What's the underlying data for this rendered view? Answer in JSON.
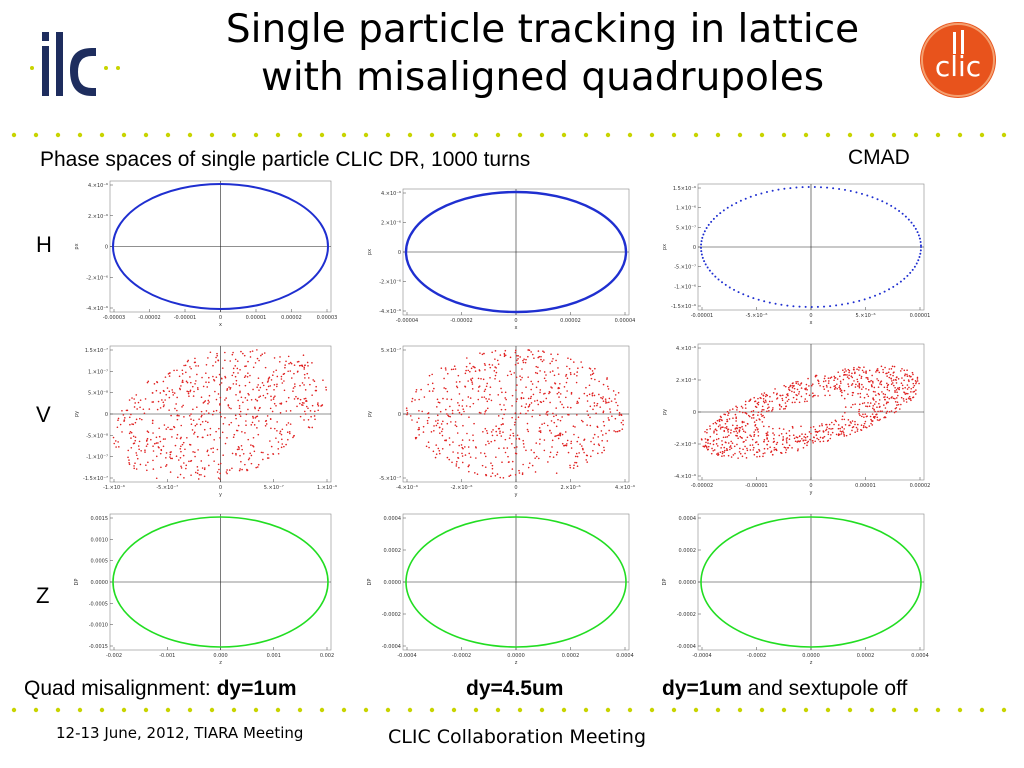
{
  "slide": {
    "title_line1": "Single particle tracking in lattice",
    "title_line2": "with misaligned quadrupoles",
    "subtitle": "Phase spaces of single particle CLIC DR, 1000 turns",
    "cmad_label": "CMAD",
    "row_labels": [
      "H",
      "V",
      "Z"
    ],
    "captions": {
      "col1_prefix": "Quad misalignment: ",
      "col1_bold": "dy=1um",
      "col2_bold": "dy=4.5um",
      "col3_bold": "dy=1um",
      "col3_suffix": " and sextupole off"
    },
    "footer_left": "12-13 June, 2012, TIARA Meeting",
    "footer_center": "CLIC Collaboration Meeting"
  },
  "logos": {
    "ilc_text": "ilc",
    "clic_text": "clic"
  },
  "colors": {
    "h_series": "#1f2fd0",
    "v_series": "#e02020",
    "z_series": "#22dd22",
    "dots": "#c8d400",
    "clic_orange": "#e8531c",
    "ilc_navy": "#1e2d5e"
  },
  "chart_data": [
    {
      "type": "scatter",
      "panel": "H, dy=1um",
      "xlabel": "x",
      "ylabel": "px",
      "x_ticks": [
        "-0.00003",
        "-0.00002",
        "-0.00001",
        "0",
        "0.00001",
        "0.00002",
        "0.00003"
      ],
      "y_ticks": [
        "4.×10⁻⁶",
        "2.×10⁻⁶",
        "0",
        "-2.×10⁻⁶",
        "-4.×10⁻⁶"
      ],
      "shape": "ellipse",
      "series": [
        {
          "values": []
        }
      ]
    },
    {
      "type": "scatter",
      "panel": "H, dy=4.5um",
      "xlabel": "x",
      "ylabel": "px",
      "x_ticks": [
        "-0.00004",
        "-0.00002",
        "0",
        "0.00002",
        "0.00004"
      ],
      "y_ticks": [
        "4.×10⁻⁶",
        "2.×10⁻⁶",
        "0",
        "-2.×10⁻⁶",
        "-4.×10⁻⁶"
      ],
      "shape": "ellipse",
      "series": [
        {
          "values": []
        }
      ]
    },
    {
      "type": "scatter",
      "panel": "H, dy=1um sextupole off",
      "xlabel": "x",
      "ylabel": "px",
      "x_ticks": [
        "-0.00001",
        "-5.×10⁻⁶",
        "0",
        "5.×10⁻⁶",
        "0.00001"
      ],
      "y_ticks": [
        "1.5×10⁻⁶",
        "1.×10⁻⁶",
        "5.×10⁻⁷",
        "0",
        "-5.×10⁻⁷",
        "-1.×10⁻⁶",
        "-1.5×10⁻⁶"
      ],
      "shape": "ellipse-dotted",
      "series": [
        {
          "values": []
        }
      ]
    },
    {
      "type": "scatter",
      "panel": "V, dy=1um",
      "xlabel": "y",
      "ylabel": "py",
      "x_ticks": [
        "-1.×10⁻⁶",
        "-5.×10⁻⁷",
        "0",
        "5.×10⁻⁷",
        "1.×10⁻⁶"
      ],
      "y_ticks": [
        "1.5×10⁻⁷",
        "1.×10⁻⁷",
        "5.×10⁻⁸",
        "0",
        "-5.×10⁻⁸",
        "-1.×10⁻⁷",
        "-1.5×10⁻⁷"
      ],
      "shape": "cloud",
      "series": [
        {
          "values": []
        }
      ]
    },
    {
      "type": "scatter",
      "panel": "V, dy=4.5um",
      "xlabel": "y",
      "ylabel": "py",
      "x_ticks": [
        "-4.×10⁻⁶",
        "-2.×10⁻⁶",
        "0",
        "2.×10⁻⁶",
        "4.×10⁻⁶"
      ],
      "y_ticks": [
        "5.×10⁻⁷",
        "0",
        "-5.×10⁻⁷"
      ],
      "shape": "cloud",
      "series": [
        {
          "values": []
        }
      ]
    },
    {
      "type": "scatter",
      "panel": "V, dy=1um sextupole off",
      "xlabel": "y",
      "ylabel": "py",
      "x_ticks": [
        "-0.00002",
        "-0.00001",
        "0",
        "0.00001",
        "0.00002"
      ],
      "y_ticks": [
        "4.×10⁻⁶",
        "2.×10⁻⁶",
        "0",
        "-2.×10⁻⁶",
        "-4.×10⁻⁶"
      ],
      "shape": "cloud-sheared",
      "series": [
        {
          "values": []
        }
      ]
    },
    {
      "type": "line",
      "panel": "Z, dy=1um",
      "xlabel": "z",
      "ylabel": "DP",
      "x_ticks": [
        "-0.002",
        "-0.001",
        "0.000",
        "0.001",
        "0.002"
      ],
      "y_ticks": [
        "0.0015",
        "0.0010",
        "0.0005",
        "0.0000",
        "-0.0005",
        "-0.0010",
        "-0.0015"
      ],
      "shape": "ellipse",
      "series": [
        {
          "values": []
        }
      ]
    },
    {
      "type": "line",
      "panel": "Z, dy=4.5um",
      "xlabel": "z",
      "ylabel": "DP",
      "x_ticks": [
        "-0.0004",
        "-0.0002",
        "0.0000",
        "0.0002",
        "0.0004"
      ],
      "y_ticks": [
        "0.0004",
        "0.0002",
        "0.0000",
        "-0.0002",
        "-0.0004"
      ],
      "shape": "ellipse",
      "series": [
        {
          "values": []
        }
      ]
    },
    {
      "type": "line",
      "panel": "Z, dy=1um sextupole off",
      "xlabel": "z",
      "ylabel": "DP",
      "x_ticks": [
        "-0.0004",
        "-0.0002",
        "0.0000",
        "0.0002",
        "0.0004"
      ],
      "y_ticks": [
        "0.0004",
        "0.0002",
        "0.0000",
        "-0.0002",
        "-0.0004"
      ],
      "shape": "ellipse",
      "series": [
        {
          "values": []
        }
      ]
    }
  ]
}
